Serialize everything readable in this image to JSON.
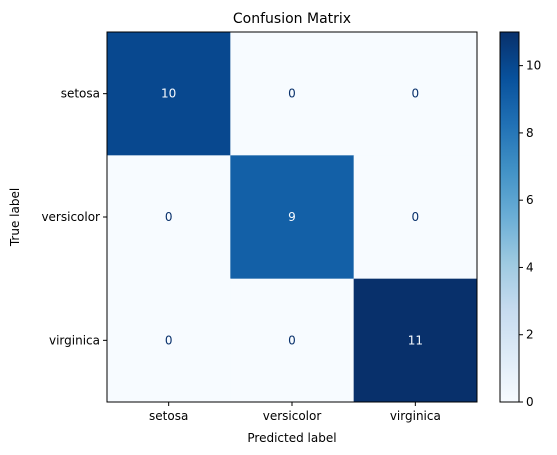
{
  "chart_data": {
    "type": "heatmap",
    "title": "Confusion Matrix",
    "xlabel": "Predicted label",
    "ylabel": "True label",
    "x_categories": [
      "setosa",
      "versicolor",
      "virginica"
    ],
    "y_categories": [
      "setosa",
      "versicolor",
      "virginica"
    ],
    "values": [
      [
        10,
        0,
        0
      ],
      [
        0,
        9,
        0
      ],
      [
        0,
        0,
        11
      ]
    ],
    "colormap": "Blues",
    "vmin": 0,
    "vmax": 11,
    "colorbar_ticks": [
      0,
      2,
      4,
      6,
      8,
      10
    ],
    "colors": {
      "low": "#f7fbff",
      "high": "#08306b",
      "text_on_dark": "#f7fbff",
      "text_on_light": "#08306b"
    }
  }
}
